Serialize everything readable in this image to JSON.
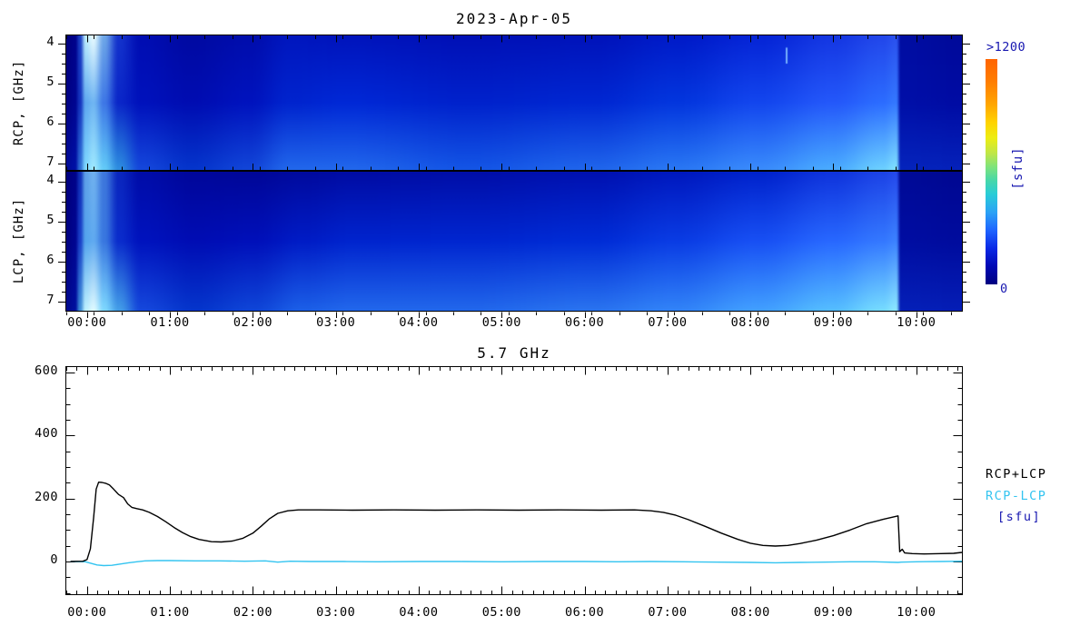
{
  "header": {
    "date_title": "2023-Apr-05"
  },
  "axes": {
    "time": {
      "start_hour": -0.25,
      "end_hour": 10.55,
      "tick_hours": [
        0,
        1,
        2,
        3,
        4,
        5,
        6,
        7,
        8,
        9,
        10
      ],
      "tick_labels": [
        "00:00",
        "01:00",
        "02:00",
        "03:00",
        "04:00",
        "05:00",
        "06:00",
        "07:00",
        "08:00",
        "09:00",
        "10:00"
      ],
      "spec_minor_step_hours": 0.3333,
      "ts_minor_step_hours": 0.125
    },
    "freq": {
      "tick_values": [
        4,
        5,
        6,
        7
      ],
      "minor_step": 0.25,
      "unit": "GHz"
    },
    "flux": {
      "tick_values": [
        600,
        400,
        200,
        0
      ],
      "minor_step": 50,
      "ylim": [
        -104,
        620
      ]
    }
  },
  "colorbar": {
    "max_label": ">1200",
    "min_label": "0",
    "unit_label": "[sfu]",
    "label_color": "#1616B0",
    "stops": [
      [
        0.0,
        "#FF6400"
      ],
      [
        0.1,
        "#FF7D00"
      ],
      [
        0.2,
        "#FFA500"
      ],
      [
        0.28,
        "#FFD200"
      ],
      [
        0.35,
        "#EDED12"
      ],
      [
        0.42,
        "#BEE648"
      ],
      [
        0.48,
        "#7DE37D"
      ],
      [
        0.54,
        "#46D7AA"
      ],
      [
        0.6,
        "#28CCD7"
      ],
      [
        0.68,
        "#2BA2F5"
      ],
      [
        0.76,
        "#1E64FF"
      ],
      [
        0.84,
        "#0A28E6"
      ],
      [
        0.92,
        "#0008B4"
      ],
      [
        1.0,
        "#000080"
      ]
    ]
  },
  "chart_data": [
    {
      "type": "heatmap",
      "id": "rcp-spectrogram",
      "ylabel": "RCP, [GHz]",
      "xlim_hours": [
        -0.25,
        10.55
      ],
      "ylim_ghz": [
        3.77,
        7.18
      ],
      "colormap_keyframes": [
        {
          "hour": -0.25,
          "top": "#000080",
          "mid": "#000285",
          "bot": "#000C99"
        },
        {
          "hour": -0.15,
          "top": "#00028A",
          "mid": "#000590",
          "bot": "#0010A5"
        },
        {
          "hour": -0.09,
          "top": "#1A3FC4",
          "mid": "#1433BE",
          "bot": "#2E6FD6"
        },
        {
          "hour": -0.02,
          "top": "#BFEFFF",
          "mid": "#5FA8F0",
          "bot": "#7FD9FF"
        },
        {
          "hour": 0.07,
          "top": "#E8FBFF",
          "mid": "#6FB5F2",
          "bot": "#9FE9FF"
        },
        {
          "hour": 0.2,
          "top": "#6FA8E8",
          "mid": "#3E77E6",
          "bot": "#64CCF8"
        },
        {
          "hour": 0.38,
          "top": "#1433CC",
          "mid": "#0A26C8",
          "bot": "#2E8FE0"
        },
        {
          "hour": 0.65,
          "top": "#000DB2",
          "mid": "#0012BC",
          "bot": "#1548DC"
        },
        {
          "hour": 1.25,
          "top": "#000AA2",
          "mid": "#000DB2",
          "bot": "#0536CC"
        },
        {
          "hour": 1.95,
          "top": "#000DAC",
          "mid": "#0013BE",
          "bot": "#1246D8"
        },
        {
          "hour": 2.45,
          "top": "#0016BE",
          "mid": "#0024CE",
          "bot": "#2268EC"
        },
        {
          "hour": 3.1,
          "top": "#0014BC",
          "mid": "#0028D6",
          "bot": "#2268EC"
        },
        {
          "hour": 4.6,
          "top": "#0010B6",
          "mid": "#0022CC",
          "bot": "#1456E6"
        },
        {
          "hour": 6.1,
          "top": "#0013BA",
          "mid": "#0027D2",
          "bot": "#2066EC"
        },
        {
          "hour": 7.1,
          "top": "#001AC8",
          "mid": "#0336DE",
          "bot": "#2A78F4"
        },
        {
          "hour": 8.1,
          "top": "#0524D6",
          "mid": "#1346EE",
          "bot": "#3A8CFC"
        },
        {
          "hour": 9.0,
          "top": "#1436E2",
          "mid": "#2458FA",
          "bot": "#4AACFF"
        },
        {
          "hour": 9.6,
          "top": "#2246EA",
          "mid": "#2C6CFF",
          "bot": "#6CD0FF"
        },
        {
          "hour": 9.76,
          "top": "#2A50EE",
          "mid": "#3478FF",
          "bot": "#80E0FF"
        },
        {
          "hour": 9.82,
          "top": "#000DA2",
          "mid": "#000FA8",
          "bot": "#0524BC"
        },
        {
          "hour": 10.55,
          "top": "#000A9A",
          "mid": "#000CA4",
          "bot": "#0522BA"
        }
      ],
      "burst": {
        "hour": 8.42,
        "ghz_from": 4.1,
        "ghz_to": 4.5,
        "color": "#82BEFF"
      }
    },
    {
      "type": "heatmap",
      "id": "lcp-spectrogram",
      "ylabel": "LCP, [GHz]",
      "xlim_hours": [
        -0.25,
        10.55
      ],
      "ylim_ghz": [
        3.77,
        7.18
      ],
      "colormap_keyframes": [
        {
          "hour": -0.25,
          "top": "#000080",
          "mid": "#000283",
          "bot": "#000A90"
        },
        {
          "hour": -0.15,
          "top": "#000288",
          "mid": "#000590",
          "bot": "#000F9E"
        },
        {
          "hour": -0.09,
          "top": "#0F2FB8",
          "mid": "#1A3FC8",
          "bot": "#3E8FD8"
        },
        {
          "hour": -0.02,
          "top": "#5FA0E8",
          "mid": "#55A5EE",
          "bot": "#BFF2FF"
        },
        {
          "hour": 0.07,
          "top": "#6FB0EE",
          "mid": "#60AAF0",
          "bot": "#E0FAFF"
        },
        {
          "hour": 0.2,
          "top": "#3E77DC",
          "mid": "#3977E0",
          "bot": "#7FD9FF"
        },
        {
          "hour": 0.38,
          "top": "#0A26BE",
          "mid": "#0A2CCC",
          "bot": "#449FE8"
        },
        {
          "hour": 0.65,
          "top": "#000CA8",
          "mid": "#0013BE",
          "bot": "#1548DC"
        },
        {
          "hour": 1.3,
          "top": "#00079A",
          "mid": "#000DB4",
          "bot": "#0536CC"
        },
        {
          "hour": 2.0,
          "top": "#000798",
          "mid": "#0010BA",
          "bot": "#0F46D8"
        },
        {
          "hour": 2.6,
          "top": "#000A9E",
          "mid": "#001CC6",
          "bot": "#1C60E8"
        },
        {
          "hour": 3.2,
          "top": "#000CA4",
          "mid": "#0024CE",
          "bot": "#2268EC"
        },
        {
          "hour": 4.6,
          "top": "#000EA8",
          "mid": "#0026D0",
          "bot": "#2268EC"
        },
        {
          "hour": 6.1,
          "top": "#0011B0",
          "mid": "#002CD6",
          "bot": "#2A74F0"
        },
        {
          "hour": 7.1,
          "top": "#0018BE",
          "mid": "#0A3CE4",
          "bot": "#3284F8"
        },
        {
          "hour": 8.1,
          "top": "#0022CC",
          "mid": "#1850F4",
          "bot": "#42A0FF"
        },
        {
          "hour": 9.0,
          "top": "#0F33DC",
          "mid": "#2868FF",
          "bot": "#55BEFF"
        },
        {
          "hour": 9.6,
          "top": "#1C42E6",
          "mid": "#3478FF",
          "bot": "#76DCFF"
        },
        {
          "hour": 9.76,
          "top": "#2448EC",
          "mid": "#3C82FF",
          "bot": "#8CE8FF"
        },
        {
          "hour": 9.82,
          "top": "#000A96",
          "mid": "#000DA2",
          "bot": "#0520B8"
        },
        {
          "hour": 10.55,
          "top": "#000892",
          "mid": "#000C9E",
          "bot": "#051EB6"
        }
      ]
    },
    {
      "type": "line",
      "title": "5.7 GHz",
      "unit_label": "[sfu]",
      "unit_color": "#1616B0",
      "xlim_hours": [
        -0.25,
        10.55
      ],
      "ylim": [
        -104,
        620
      ],
      "yticks": [
        0,
        200,
        400,
        600
      ],
      "legend_position": "right",
      "series": [
        {
          "name": "RCP+LCP",
          "color": "#000000",
          "points": [
            [
              -0.2,
              0
            ],
            [
              -0.05,
              1
            ],
            [
              0.0,
              6
            ],
            [
              0.04,
              40
            ],
            [
              0.08,
              140
            ],
            [
              0.11,
              230
            ],
            [
              0.14,
              252
            ],
            [
              0.18,
              251
            ],
            [
              0.23,
              248
            ],
            [
              0.27,
              243
            ],
            [
              0.32,
              230
            ],
            [
              0.38,
              213
            ],
            [
              0.44,
              203
            ],
            [
              0.49,
              183
            ],
            [
              0.54,
              172
            ],
            [
              0.6,
              168
            ],
            [
              0.67,
              164
            ],
            [
              0.75,
              156
            ],
            [
              0.85,
              143
            ],
            [
              0.95,
              126
            ],
            [
              1.05,
              108
            ],
            [
              1.15,
              92
            ],
            [
              1.25,
              79
            ],
            [
              1.35,
              70
            ],
            [
              1.5,
              63
            ],
            [
              1.62,
              62
            ],
            [
              1.75,
              65
            ],
            [
              1.88,
              74
            ],
            [
              2.0,
              90
            ],
            [
              2.1,
              112
            ],
            [
              2.2,
              136
            ],
            [
              2.3,
              153
            ],
            [
              2.42,
              161
            ],
            [
              2.55,
              164
            ],
            [
              2.8,
              164
            ],
            [
              3.2,
              163
            ],
            [
              3.7,
              164
            ],
            [
              4.2,
              163
            ],
            [
              4.7,
              164
            ],
            [
              5.2,
              163
            ],
            [
              5.7,
              164
            ],
            [
              6.2,
              163
            ],
            [
              6.6,
              164
            ],
            [
              6.8,
              161
            ],
            [
              6.95,
              156
            ],
            [
              7.1,
              147
            ],
            [
              7.25,
              133
            ],
            [
              7.45,
              112
            ],
            [
              7.65,
              90
            ],
            [
              7.85,
              70
            ],
            [
              8.0,
              58
            ],
            [
              8.15,
              51
            ],
            [
              8.3,
              49
            ],
            [
              8.45,
              51
            ],
            [
              8.6,
              57
            ],
            [
              8.8,
              68
            ],
            [
              9.0,
              82
            ],
            [
              9.2,
              100
            ],
            [
              9.4,
              120
            ],
            [
              9.6,
              134
            ],
            [
              9.72,
              141
            ],
            [
              9.78,
              145
            ],
            [
              9.8,
              31
            ],
            [
              9.83,
              39
            ],
            [
              9.86,
              27
            ],
            [
              9.95,
              25
            ],
            [
              10.1,
              24
            ],
            [
              10.3,
              25
            ],
            [
              10.45,
              26
            ],
            [
              10.55,
              29
            ]
          ]
        },
        {
          "name": "RCP-LCP",
          "color": "#33C4F0",
          "points": [
            [
              -0.2,
              0
            ],
            [
              -0.02,
              -1
            ],
            [
              0.05,
              -6
            ],
            [
              0.12,
              -11
            ],
            [
              0.2,
              -13
            ],
            [
              0.3,
              -12
            ],
            [
              0.4,
              -8
            ],
            [
              0.5,
              -4
            ],
            [
              0.6,
              -1
            ],
            [
              0.7,
              2
            ],
            [
              0.85,
              3
            ],
            [
              1.0,
              3
            ],
            [
              1.3,
              2
            ],
            [
              1.6,
              2
            ],
            [
              1.9,
              1
            ],
            [
              2.15,
              2
            ],
            [
              2.3,
              -2
            ],
            [
              2.45,
              1
            ],
            [
              2.7,
              0
            ],
            [
              3.1,
              0
            ],
            [
              3.5,
              -1
            ],
            [
              4.0,
              0
            ],
            [
              4.5,
              0
            ],
            [
              5.0,
              -1
            ],
            [
              5.5,
              0
            ],
            [
              6.0,
              0
            ],
            [
              6.4,
              -1
            ],
            [
              6.8,
              0
            ],
            [
              7.2,
              -1
            ],
            [
              7.6,
              -2
            ],
            [
              8.0,
              -3
            ],
            [
              8.3,
              -4
            ],
            [
              8.6,
              -3
            ],
            [
              8.9,
              -2
            ],
            [
              9.2,
              -1
            ],
            [
              9.5,
              -1
            ],
            [
              9.78,
              -3
            ],
            [
              9.82,
              -2
            ],
            [
              10.0,
              -1
            ],
            [
              10.3,
              0
            ],
            [
              10.55,
              1
            ]
          ]
        }
      ]
    }
  ]
}
